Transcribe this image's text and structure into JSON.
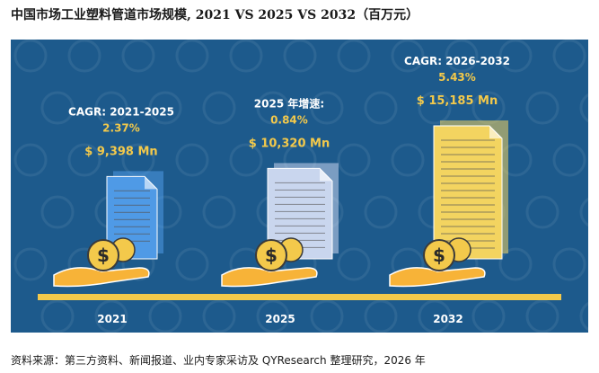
{
  "title": "中国市场工业塑料管道市场规模, 2021 VS 2025 VS 2032（百万元）",
  "source": "资料来源：第三方资料、新闻报道、业内专家采访及 QYResearch 整理研究，2026 年",
  "colors": {
    "panel": "#1d5a8c",
    "bar": "#f3c94b",
    "text_accent": "#f3c94b",
    "white": "#ffffff",
    "doc_2021": "#4f9ae6",
    "doc_2025": "#c9d6ee",
    "doc_2032": "#f3d460"
  },
  "chart_data": {
    "type": "bar",
    "categories": [
      "2021",
      "2025",
      "2032"
    ],
    "values": [
      9398,
      10320,
      15185
    ],
    "value_labels": [
      "$ 9,398 Mn",
      "$ 10,320 Mn",
      "$ 15,185 Mn"
    ],
    "annotations": [
      {
        "label": "CAGR: 2021-2025",
        "value": "2.37%"
      },
      {
        "label": "2025 年增速:",
        "value": "0.84%"
      },
      {
        "label": "CAGR: 2026-2032",
        "value": "5.43%"
      }
    ],
    "icons": [
      "document-icon",
      "coin-icon",
      "hand-icon"
    ]
  }
}
